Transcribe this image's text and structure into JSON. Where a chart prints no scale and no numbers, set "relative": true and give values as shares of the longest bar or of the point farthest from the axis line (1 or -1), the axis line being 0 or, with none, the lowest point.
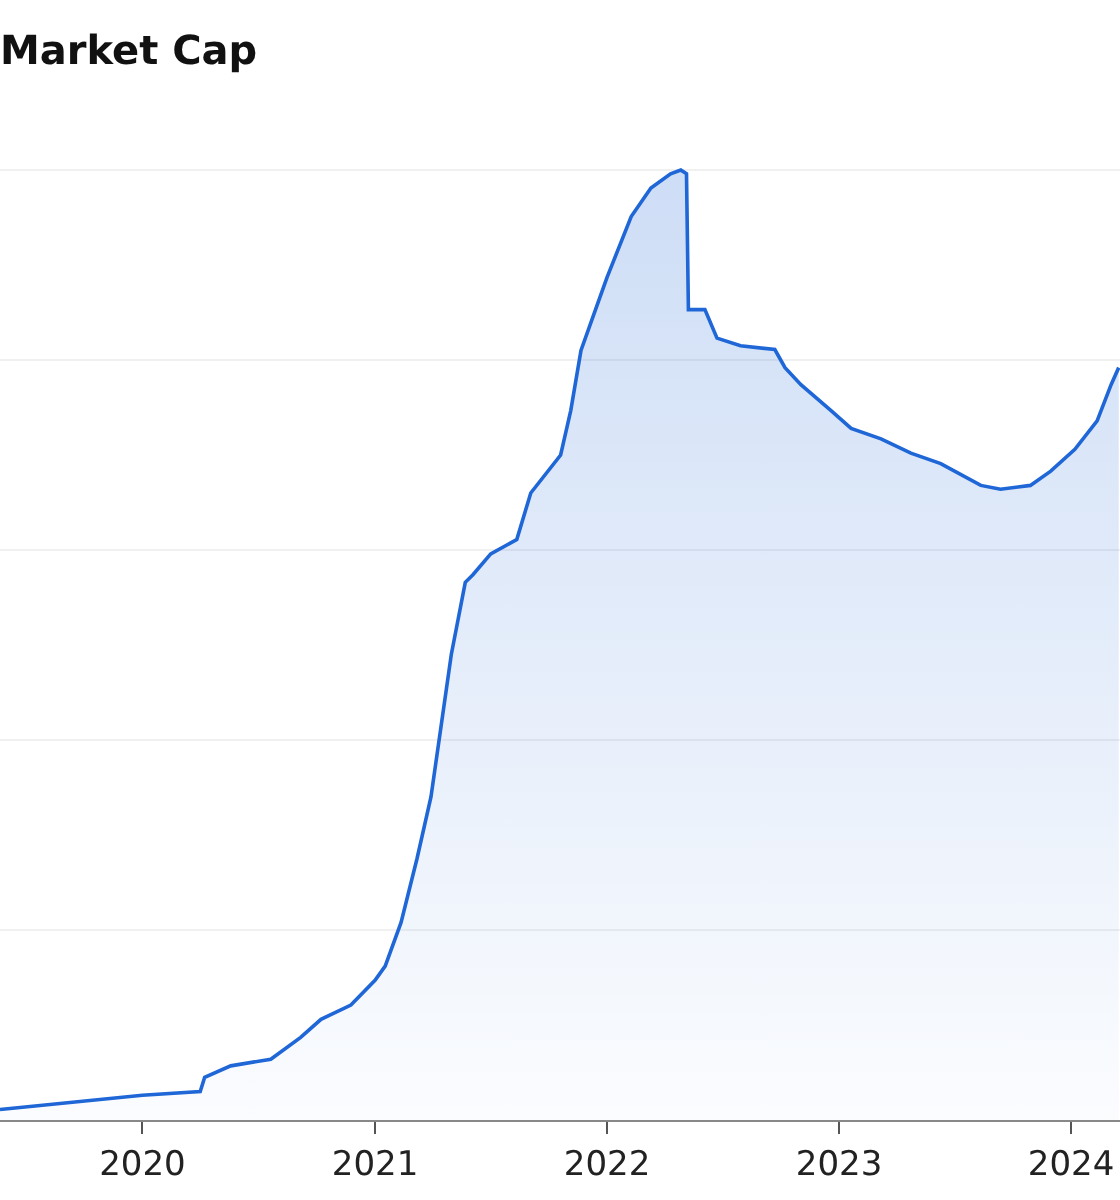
{
  "chart_data": {
    "type": "area",
    "title": "Market Cap",
    "relative": true,
    "grid": "y",
    "x": [
      "2019-05-22",
      "2020-01-01",
      "2020-04-01",
      "2020-04-08",
      "2020-05-19",
      "2020-07-21",
      "2020-09-06",
      "2020-10-08",
      "2020-11-24",
      "2021-01-01",
      "2021-01-17",
      "2021-02-11",
      "2021-03-08",
      "2021-03-30",
      "2021-04-15",
      "2021-05-01",
      "2021-05-23",
      "2021-06-04",
      "2021-07-02",
      "2021-08-12",
      "2021-09-03",
      "2021-10-20",
      "2021-11-05",
      "2021-11-21",
      "2021-12-16",
      "2022-01-01",
      "2022-02-08",
      "2022-03-11",
      "2022-04-11",
      "2022-04-27",
      "2022-05-06",
      "2022-05-09",
      "2022-06-04",
      "2022-06-23",
      "2022-07-30",
      "2022-09-22",
      "2022-10-08",
      "2022-11-02",
      "2022-12-19",
      "2023-01-20",
      "2023-03-08",
      "2023-04-24",
      "2023-06-10",
      "2023-08-12",
      "2023-09-12",
      "2023-10-29",
      "2023-11-30",
      "2024-01-07",
      "2024-02-11",
      "2024-03-04",
      "2024-03-16"
    ],
    "series": [
      {
        "color": "#1f66d6",
        "values": [
          0.011,
          0.026,
          0.03,
          0.045,
          0.057,
          0.064,
          0.087,
          0.106,
          0.121,
          0.147,
          0.162,
          0.208,
          0.275,
          0.34,
          0.415,
          0.49,
          0.566,
          0.574,
          0.596,
          0.611,
          0.66,
          0.7,
          0.747,
          0.81,
          0.857,
          0.887,
          0.951,
          0.981,
          0.996,
          1.0,
          0.996,
          0.853,
          0.853,
          0.823,
          0.815,
          0.811,
          0.792,
          0.774,
          0.747,
          0.728,
          0.717,
          0.702,
          0.691,
          0.668,
          0.664,
          0.668,
          0.683,
          0.706,
          0.736,
          0.774,
          0.792
        ]
      }
    ],
    "xlim": [
      "2019-05-22",
      "2024-03-18"
    ],
    "xticks": [
      "2020",
      "2021",
      "2022",
      "2023",
      "2024"
    ]
  }
}
